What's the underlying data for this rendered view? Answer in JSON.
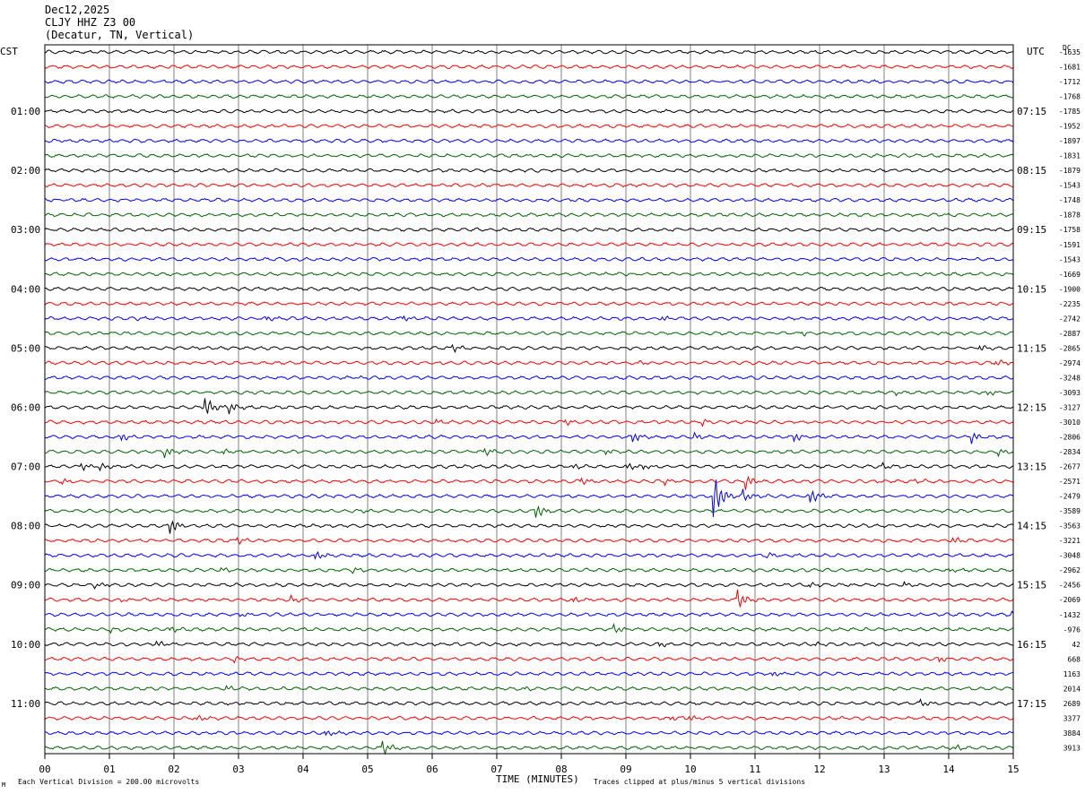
{
  "header": {
    "date": "Dec12,2025",
    "station": "CLJY HHZ Z3 00",
    "location": "(Decatur, TN, Vertical)"
  },
  "left_axis_title": "CST",
  "right_axis_title": "UTC",
  "dc_title": "DC",
  "footer": {
    "left_note": "Each Vertical Division =  200.00 microvolts",
    "xlabel": "TIME (MINUTES)",
    "right_note": "Traces clipped at plus/minus 5 vertical divisions",
    "corner_mark": "M"
  },
  "colors": {
    "trace_cycle": [
      "#000000",
      "#ff0000",
      "#0000ff",
      "#006400"
    ],
    "grid": "#808080"
  },
  "chart_data": {
    "type": "line",
    "title": "",
    "xlabel": "TIME (MINUTES)",
    "xlim": [
      0,
      15
    ],
    "x_ticks": [
      "00",
      "01",
      "02",
      "03",
      "04",
      "05",
      "06",
      "07",
      "08",
      "09",
      "10",
      "11",
      "12",
      "13",
      "14",
      "15"
    ],
    "trace_count": 48,
    "left_hour_labels": [
      {
        "row": 4,
        "label": "01:00"
      },
      {
        "row": 8,
        "label": "02:00"
      },
      {
        "row": 12,
        "label": "03:00"
      },
      {
        "row": 16,
        "label": "04:00"
      },
      {
        "row": 20,
        "label": "05:00"
      },
      {
        "row": 24,
        "label": "06:00"
      },
      {
        "row": 28,
        "label": "07:00"
      },
      {
        "row": 32,
        "label": "08:00"
      },
      {
        "row": 36,
        "label": "09:00"
      },
      {
        "row": 40,
        "label": "10:00"
      },
      {
        "row": 44,
        "label": "11:00"
      }
    ],
    "right_hour_labels": [
      {
        "row": 4,
        "label": "07:15"
      },
      {
        "row": 8,
        "label": "08:15"
      },
      {
        "row": 12,
        "label": "09:15"
      },
      {
        "row": 16,
        "label": "10:15"
      },
      {
        "row": 20,
        "label": "11:15"
      },
      {
        "row": 24,
        "label": "12:15"
      },
      {
        "row": 28,
        "label": "13:15"
      },
      {
        "row": 32,
        "label": "14:15"
      },
      {
        "row": 36,
        "label": "15:15"
      },
      {
        "row": 40,
        "label": "16:15"
      },
      {
        "row": 44,
        "label": "17:15"
      }
    ],
    "dc_offsets": [
      "-1635",
      "-1681",
      "-1712",
      "-1768",
      "-1785",
      "-1952",
      "-1897",
      "-1831",
      "-1879",
      "-1543",
      "-1748",
      "-1878",
      "-1758",
      "-1591",
      "-1543",
      "-1669",
      "-1900",
      "-2235",
      "-2742",
      "-2887",
      "-2865",
      "-2974",
      "-3248",
      "-3093",
      "-3127",
      "-3010",
      "-2806",
      "-2834",
      "-2677",
      "-2571",
      "-2479",
      "-3589",
      "-3563",
      "-3221",
      "-3048",
      "-2962",
      "-2456",
      "-2069",
      "-1432",
      "-976",
      "42",
      "668",
      "1163",
      "2014",
      "2689",
      "3377",
      "3884",
      "3913"
    ],
    "events": [
      {
        "row": 18,
        "minute": 1.4,
        "amp": 2
      },
      {
        "row": 18,
        "minute": 3.4,
        "amp": 3
      },
      {
        "row": 18,
        "minute": 5.55,
        "amp": 3
      },
      {
        "row": 18,
        "minute": 9.55,
        "amp": 3
      },
      {
        "row": 19,
        "minute": 11.7,
        "amp": 3
      },
      {
        "row": 20,
        "minute": 6.3,
        "amp": 4
      },
      {
        "row": 20,
        "minute": 14.45,
        "amp": 4
      },
      {
        "row": 21,
        "minute": 9.15,
        "amp": 3
      },
      {
        "row": 21,
        "minute": 14.7,
        "amp": 4
      },
      {
        "row": 22,
        "minute": 4.8,
        "amp": 2
      },
      {
        "row": 23,
        "minute": 13.15,
        "amp": 3
      },
      {
        "row": 23,
        "minute": 14.6,
        "amp": 3
      },
      {
        "row": 24,
        "minute": 2.45,
        "amp": 14
      },
      {
        "row": 24,
        "minute": 2.85,
        "amp": 6
      },
      {
        "row": 25,
        "minute": 6.05,
        "amp": 3
      },
      {
        "row": 25,
        "minute": 8.05,
        "amp": 3
      },
      {
        "row": 25,
        "minute": 10.15,
        "amp": 4
      },
      {
        "row": 26,
        "minute": 1.15,
        "amp": 6
      },
      {
        "row": 26,
        "minute": 9.1,
        "amp": 6
      },
      {
        "row": 26,
        "minute": 10.05,
        "amp": 4
      },
      {
        "row": 26,
        "minute": 11.6,
        "amp": 5
      },
      {
        "row": 26,
        "minute": 14.35,
        "amp": 6
      },
      {
        "row": 27,
        "minute": 1.85,
        "amp": 6
      },
      {
        "row": 27,
        "minute": 2.75,
        "amp": 3
      },
      {
        "row": 27,
        "minute": 6.8,
        "amp": 4
      },
      {
        "row": 27,
        "minute": 8.65,
        "amp": 4
      },
      {
        "row": 27,
        "minute": 14.75,
        "amp": 4
      },
      {
        "row": 28,
        "minute": 0.55,
        "amp": 4
      },
      {
        "row": 28,
        "minute": 0.85,
        "amp": 4
      },
      {
        "row": 28,
        "minute": 8.15,
        "amp": 4
      },
      {
        "row": 28,
        "minute": 9.0,
        "amp": 4
      },
      {
        "row": 28,
        "minute": 9.25,
        "amp": 3
      },
      {
        "row": 28,
        "minute": 12.95,
        "amp": 3
      },
      {
        "row": 29,
        "minute": 0.25,
        "amp": 3
      },
      {
        "row": 29,
        "minute": 8.3,
        "amp": 4
      },
      {
        "row": 29,
        "minute": 9.6,
        "amp": 3
      },
      {
        "row": 29,
        "minute": 10.85,
        "amp": 8
      },
      {
        "row": 29,
        "minute": 13.45,
        "amp": 3
      },
      {
        "row": 30,
        "minute": 10.35,
        "amp": 26
      },
      {
        "row": 30,
        "minute": 10.8,
        "amp": 7
      },
      {
        "row": 30,
        "minute": 11.85,
        "amp": 8
      },
      {
        "row": 31,
        "minute": 4.9,
        "amp": 3
      },
      {
        "row": 31,
        "minute": 7.6,
        "amp": 8
      },
      {
        "row": 32,
        "minute": 1.9,
        "amp": 12
      },
      {
        "row": 33,
        "minute": 2.95,
        "amp": 5
      },
      {
        "row": 33,
        "minute": 14.05,
        "amp": 4
      },
      {
        "row": 34,
        "minute": 4.15,
        "amp": 7
      },
      {
        "row": 34,
        "minute": 11.15,
        "amp": 3
      },
      {
        "row": 35,
        "minute": 2.7,
        "amp": 3
      },
      {
        "row": 35,
        "minute": 4.75,
        "amp": 3
      },
      {
        "row": 35,
        "minute": 14.0,
        "amp": 3
      },
      {
        "row": 36,
        "minute": 0.75,
        "amp": 4
      },
      {
        "row": 36,
        "minute": 11.85,
        "amp": 3
      },
      {
        "row": 36,
        "minute": 13.3,
        "amp": 3
      },
      {
        "row": 37,
        "minute": 1.15,
        "amp": 3
      },
      {
        "row": 37,
        "minute": 3.8,
        "amp": 4
      },
      {
        "row": 37,
        "minute": 8.15,
        "amp": 4
      },
      {
        "row": 37,
        "minute": 10.7,
        "amp": 14
      },
      {
        "row": 38,
        "minute": 3.0,
        "amp": 3
      },
      {
        "row": 38,
        "minute": 14.95,
        "amp": 3
      },
      {
        "row": 39,
        "minute": 1.0,
        "amp": 3
      },
      {
        "row": 39,
        "minute": 1.9,
        "amp": 4
      },
      {
        "row": 39,
        "minute": 8.8,
        "amp": 5
      },
      {
        "row": 40,
        "minute": 1.7,
        "amp": 4
      },
      {
        "row": 40,
        "minute": 9.5,
        "amp": 3
      },
      {
        "row": 40,
        "minute": 11.9,
        "amp": 3
      },
      {
        "row": 41,
        "minute": 2.9,
        "amp": 4
      },
      {
        "row": 41,
        "minute": 13.85,
        "amp": 3
      },
      {
        "row": 42,
        "minute": 11.25,
        "amp": 3
      },
      {
        "row": 43,
        "minute": 2.8,
        "amp": 3
      },
      {
        "row": 43,
        "minute": 7.4,
        "amp": 3
      },
      {
        "row": 44,
        "minute": 13.55,
        "amp": 4
      },
      {
        "row": 45,
        "minute": 2.35,
        "amp": 3
      },
      {
        "row": 45,
        "minute": 9.65,
        "amp": 4
      },
      {
        "row": 45,
        "minute": 9.95,
        "amp": 4
      },
      {
        "row": 46,
        "minute": 4.35,
        "amp": 3
      },
      {
        "row": 47,
        "minute": 5.2,
        "amp": 9
      },
      {
        "row": 47,
        "minute": 14.1,
        "amp": 3
      }
    ]
  }
}
